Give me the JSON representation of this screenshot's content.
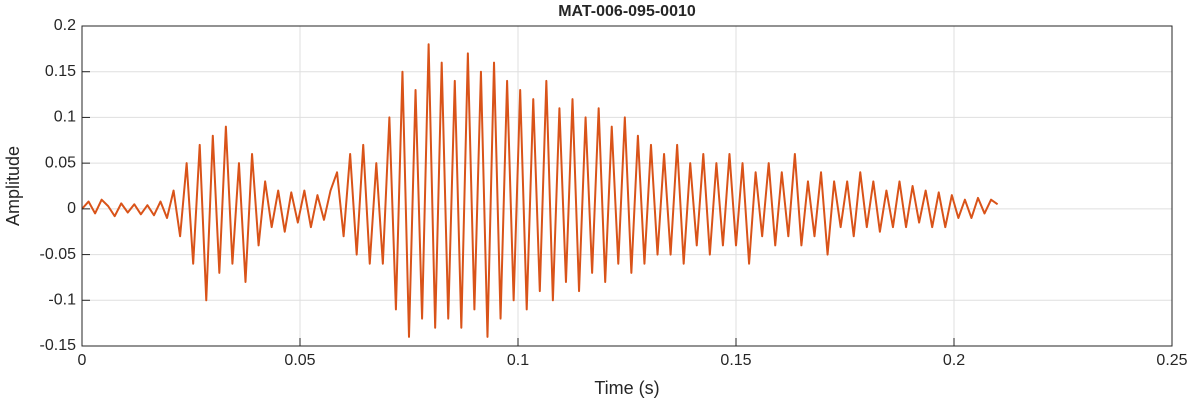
{
  "chart_data": {
    "type": "line",
    "title": "MAT-006-095-0010",
    "x_label": "Time (s)",
    "y_label": "Amplitude",
    "x": [
      0,
      0.0015,
      0.003,
      0.0045,
      0.006,
      0.0075,
      0.009,
      0.0105,
      0.012,
      0.0135,
      0.015,
      0.0165,
      0.018,
      0.0195,
      0.021,
      0.0225,
      0.024,
      0.0255,
      0.027,
      0.0285,
      0.03,
      0.0315,
      0.033,
      0.0345,
      0.036,
      0.0375,
      0.039,
      0.0405,
      0.042,
      0.0435,
      0.045,
      0.0465,
      0.048,
      0.0495,
      0.051,
      0.0525,
      0.054,
      0.0555,
      0.057,
      0.0585,
      0.06,
      0.0615,
      0.063,
      0.0645,
      0.066,
      0.0675,
      0.069,
      0.0705,
      0.072,
      0.0735,
      0.075,
      0.0765,
      0.078,
      0.0795,
      0.081,
      0.0825,
      0.084,
      0.0855,
      0.087,
      0.0885,
      0.09,
      0.0915,
      0.093,
      0.0945,
      0.096,
      0.0975,
      0.099,
      0.1005,
      0.102,
      0.1035,
      0.105,
      0.1065,
      0.108,
      0.1095,
      0.111,
      0.1125,
      0.114,
      0.1155,
      0.117,
      0.1185,
      0.12,
      0.1215,
      0.123,
      0.1245,
      0.126,
      0.1275,
      0.129,
      0.1305,
      0.132,
      0.1335,
      0.135,
      0.1365,
      0.138,
      0.1395,
      0.141,
      0.1425,
      0.144,
      0.1455,
      0.147,
      0.1485,
      0.15,
      0.1515,
      0.153,
      0.1545,
      0.156,
      0.1575,
      0.159,
      0.1605,
      0.162,
      0.1635,
      0.165,
      0.1665,
      0.168,
      0.1695,
      0.171,
      0.1725,
      0.174,
      0.1755,
      0.177,
      0.1785,
      0.18,
      0.1815,
      0.183,
      0.1845,
      0.186,
      0.1875,
      0.189,
      0.1905,
      0.192,
      0.1935,
      0.195,
      0.1965,
      0.198,
      0.1995,
      0.201,
      0.2025,
      0.204,
      0.2055,
      0.207,
      0.2085,
      0.21
    ],
    "series": [
      {
        "color": "#d95319",
        "values": [
          0,
          0.008,
          -0.005,
          0.01,
          0.003,
          -0.008,
          0.006,
          -0.004,
          0.005,
          -0.006,
          0.004,
          -0.007,
          0.008,
          -0.01,
          0.02,
          -0.03,
          0.05,
          -0.06,
          0.07,
          -0.1,
          0.08,
          -0.07,
          0.09,
          -0.06,
          0.05,
          -0.08,
          0.06,
          -0.04,
          0.03,
          -0.02,
          0.02,
          -0.025,
          0.018,
          -0.015,
          0.02,
          -0.02,
          0.015,
          -0.012,
          0.02,
          0.04,
          -0.03,
          0.06,
          -0.05,
          0.07,
          -0.06,
          0.05,
          -0.06,
          0.1,
          -0.11,
          0.15,
          -0.14,
          0.13,
          -0.12,
          0.18,
          -0.13,
          0.16,
          -0.12,
          0.14,
          -0.13,
          0.17,
          -0.11,
          0.15,
          -0.14,
          0.16,
          -0.12,
          0.14,
          -0.1,
          0.13,
          -0.11,
          0.12,
          -0.09,
          0.14,
          -0.1,
          0.11,
          -0.08,
          0.12,
          -0.09,
          0.1,
          -0.07,
          0.11,
          -0.08,
          0.09,
          -0.06,
          0.1,
          -0.07,
          0.08,
          -0.06,
          0.07,
          -0.05,
          0.06,
          -0.05,
          0.07,
          -0.06,
          0.05,
          -0.04,
          0.06,
          -0.05,
          0.05,
          -0.04,
          0.06,
          -0.04,
          0.05,
          -0.06,
          0.04,
          -0.03,
          0.05,
          -0.04,
          0.04,
          -0.03,
          0.06,
          -0.04,
          0.03,
          -0.03,
          0.04,
          -0.05,
          0.03,
          -0.02,
          0.03,
          -0.03,
          0.04,
          -0.02,
          0.03,
          -0.025,
          0.02,
          -0.02,
          0.03,
          -0.02,
          0.025,
          -0.015,
          0.02,
          -0.02,
          0.018,
          -0.02,
          0.015,
          -0.01,
          0.01,
          -0.01,
          0.012,
          -0.005,
          0.01,
          0.005
        ]
      }
    ],
    "xlim": [
      0,
      0.25
    ],
    "xticks": [
      0,
      0.05,
      0.1,
      0.15,
      0.2,
      0.25
    ],
    "ylim": [
      -0.15,
      0.2
    ],
    "yticks": [
      -0.15,
      -0.1,
      -0.05,
      0,
      0.05,
      0.1,
      0.15,
      0.2
    ],
    "grid": true
  }
}
